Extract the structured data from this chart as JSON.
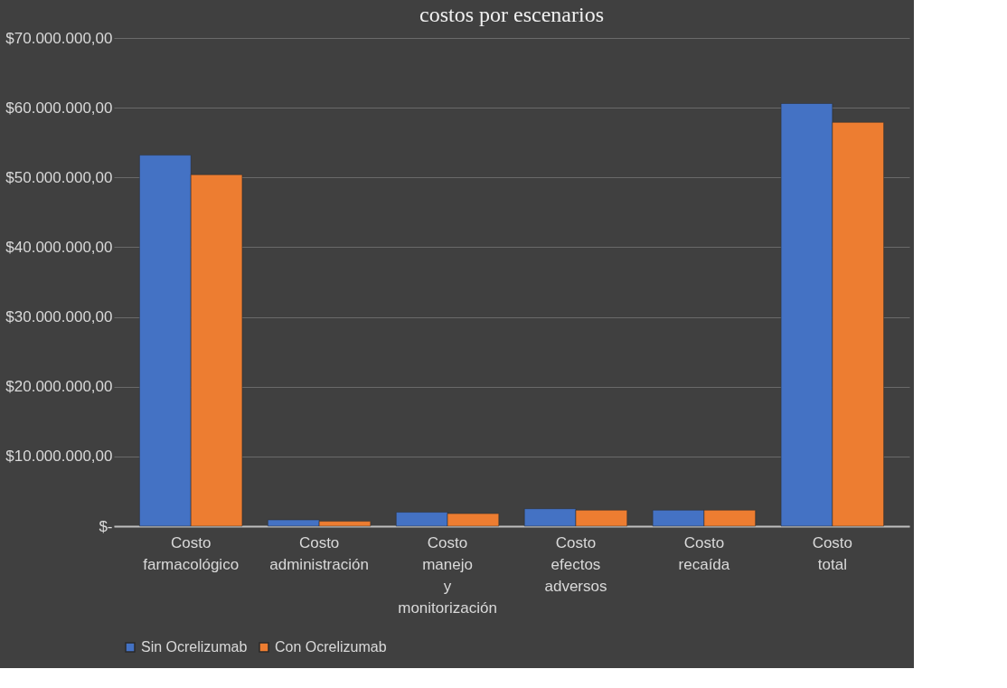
{
  "chart_data": {
    "type": "bar",
    "title": "costos por escenarios",
    "categories": [
      "Costo farmacológico",
      "Costo administración",
      "Costo manejo y monitorización",
      "Costo efectos adversos",
      "Costo recaída",
      "Costo total"
    ],
    "series": [
      {
        "name": "Sin Ocrelizumab",
        "color": "#4472c4",
        "values": [
          53200000,
          900000,
          2000000,
          2500000,
          2300000,
          60600000
        ]
      },
      {
        "name": "Con Ocrelizumab",
        "color": "#ed7d31",
        "values": [
          50400000,
          700000,
          1800000,
          2300000,
          2300000,
          57900000
        ]
      }
    ],
    "ylim": [
      0,
      70000000
    ],
    "yticks": [
      {
        "value": 0,
        "label": "$-"
      },
      {
        "value": 10000000,
        "label": "$10.000.000,00"
      },
      {
        "value": 20000000,
        "label": "$20.000.000,00"
      },
      {
        "value": 30000000,
        "label": "$30.000.000,00"
      },
      {
        "value": 40000000,
        "label": "$40.000.000,00"
      },
      {
        "value": 50000000,
        "label": "$50.000.000,00"
      },
      {
        "value": 60000000,
        "label": "$60.000.000,00"
      },
      {
        "value": 70000000,
        "label": "$70.000.000,00"
      }
    ],
    "grid": "y",
    "legend": "bottom"
  }
}
